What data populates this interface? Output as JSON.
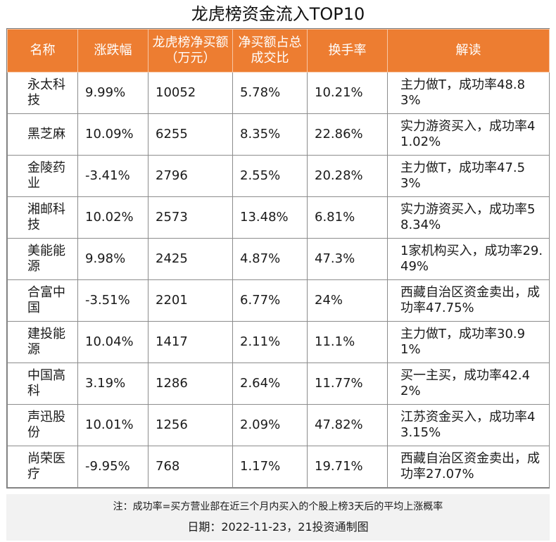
{
  "title": "龙虎榜资金流入TOP10",
  "headers": [
    "名称",
    "涨跌幅",
    "龙虎榜净买额（万元）",
    "净买额占总成交比",
    "换手率",
    "解读"
  ],
  "rows": [
    {
      "name": "永太科技",
      "change": "9.99%",
      "net_buy": "10052",
      "ratio": "5.78%",
      "turnover": "10.21%",
      "note": "主力做T，成功率48.83%"
    },
    {
      "name": "黑芝麻",
      "change": "10.09%",
      "net_buy": "6255",
      "ratio": "8.35%",
      "turnover": "22.86%",
      "note": "实力游资买入，成功率41.02%"
    },
    {
      "name": "金陵药业",
      "change": "-3.41%",
      "net_buy": "2796",
      "ratio": "2.55%",
      "turnover": "20.28%",
      "note": "主力做T，成功率47.53%"
    },
    {
      "name": "湘邮科技",
      "change": "10.02%",
      "net_buy": "2573",
      "ratio": "13.48%",
      "turnover": "6.81%",
      "note": "实力游资买入，成功率58.34%"
    },
    {
      "name": "美能能源",
      "change": "9.98%",
      "net_buy": "2425",
      "ratio": "4.87%",
      "turnover": "47.3%",
      "note": "1家机构买入，成功率29.49%"
    },
    {
      "name": "合富中国",
      "change": "-3.51%",
      "net_buy": "2201",
      "ratio": "6.77%",
      "turnover": "24%",
      "note": "西藏自治区资金卖出，成功率47.75%"
    },
    {
      "name": "建投能源",
      "change": "10.04%",
      "net_buy": "1417",
      "ratio": "2.11%",
      "turnover": "11.1%",
      "note": "主力做T，成功率30.91%"
    },
    {
      "name": "中国高科",
      "change": "3.19%",
      "net_buy": "1286",
      "ratio": "2.64%",
      "turnover": "11.77%",
      "note": "买一主买，成功率42.42%"
    },
    {
      "name": "声迅股份",
      "change": "10.01%",
      "net_buy": "1256",
      "ratio": "2.09%",
      "turnover": "47.82%",
      "note": "江苏资金买入，成功率43.15%"
    },
    {
      "name": "尚荣医疗",
      "change": "-9.95%",
      "net_buy": "768",
      "ratio": "1.17%",
      "turnover": "19.71%",
      "note": "西藏自治区资金卖出，成功率27.07%"
    }
  ],
  "footer": {
    "note": "注：成功率=买方营业部在近三个月内买入的个股上榜3天后的平均上涨概率",
    "date": "日期：2022-11-23，21投资通制图"
  },
  "colors": {
    "header_bg": "#ed7d31",
    "footer_bg": "#f2f2f2"
  }
}
